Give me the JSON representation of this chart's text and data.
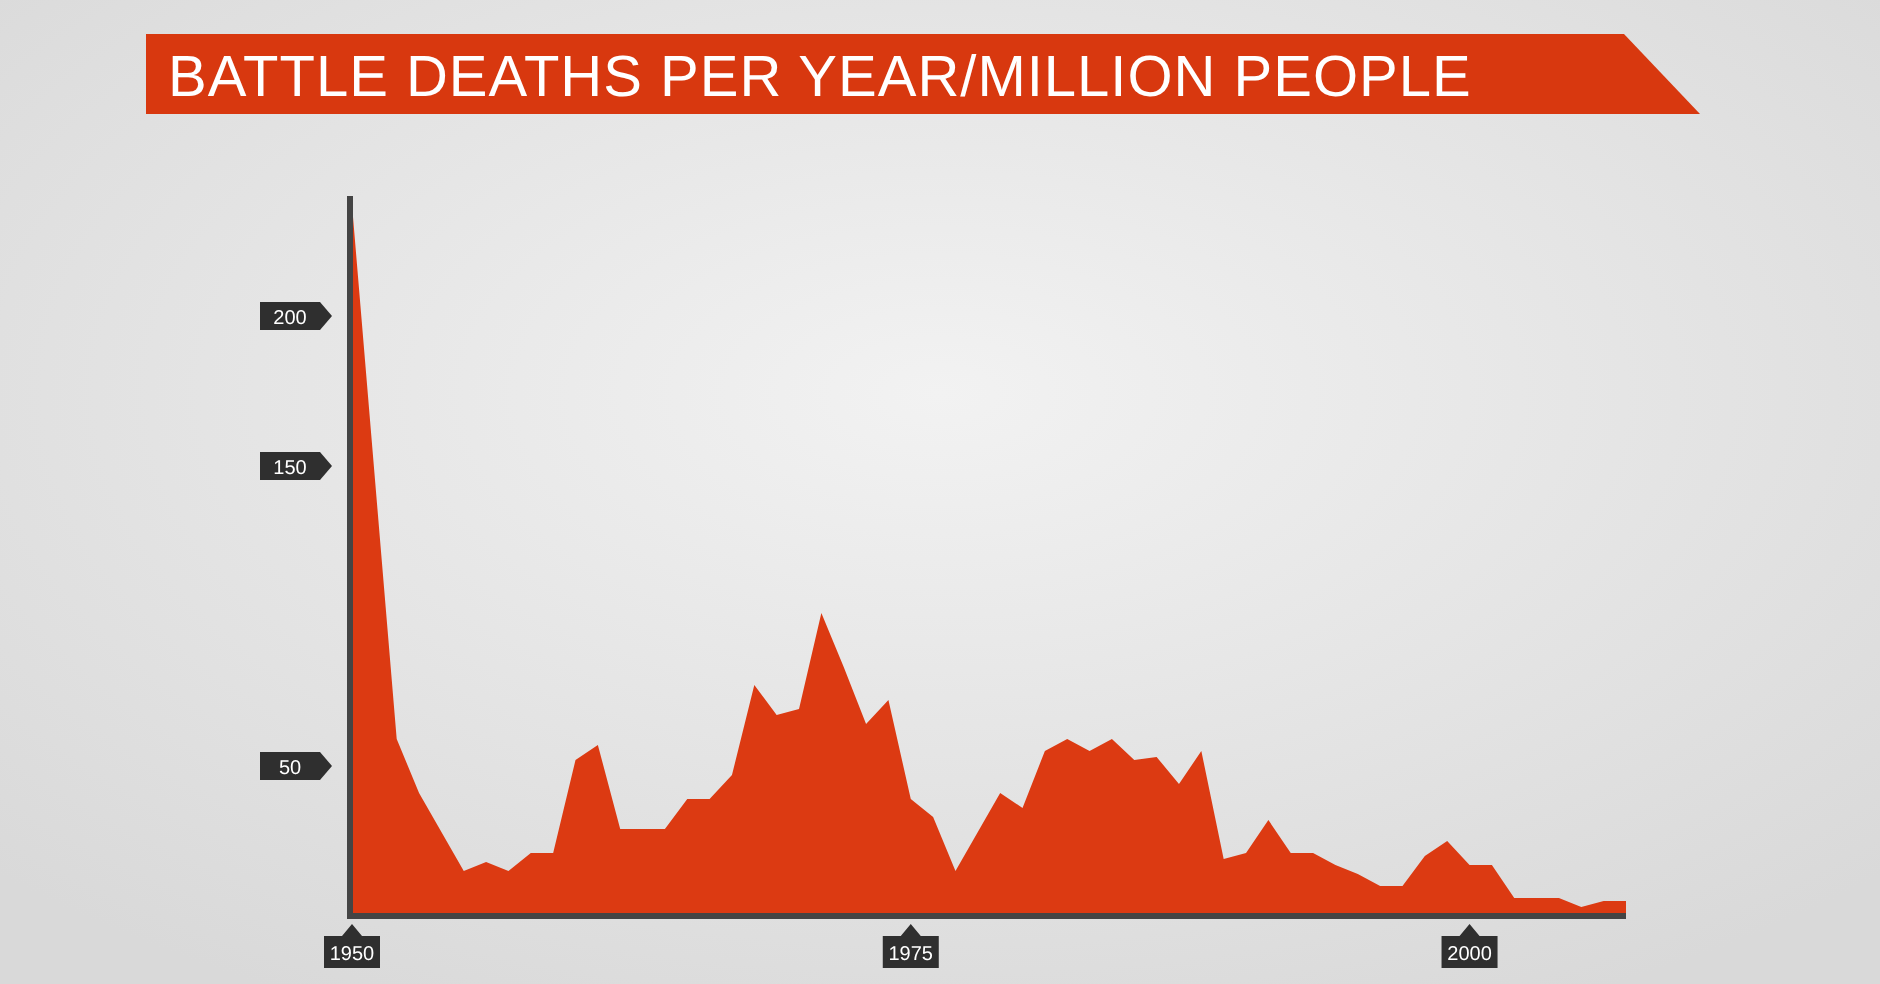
{
  "chart_data": {
    "type": "area",
    "title": "BATTLE DEATHS PER YEAR/MILLION PEOPLE",
    "x": [
      1950,
      1952,
      1953,
      1955,
      1956,
      1957,
      1958,
      1959,
      1960,
      1961,
      1962,
      1963,
      1964,
      1965,
      1966,
      1967,
      1968,
      1969,
      1970,
      1971,
      1972,
      1973,
      1974,
      1975,
      1976,
      1977,
      1978,
      1979,
      1980,
      1981,
      1982,
      1983,
      1984,
      1985,
      1986,
      1987,
      1988,
      1989,
      1990,
      1991,
      1992,
      1993,
      1994,
      1995,
      1996,
      1997,
      1998,
      1999,
      2000,
      2001,
      2002,
      2003,
      2004,
      2005,
      2006,
      2007
    ],
    "values": [
      237,
      59,
      41,
      15,
      18,
      15,
      21,
      21,
      52,
      57,
      29,
      29,
      29,
      39,
      39,
      47,
      77,
      67,
      69,
      101,
      83,
      64,
      72,
      39,
      33,
      15,
      28,
      41,
      36,
      55,
      59,
      55,
      59,
      52,
      53,
      44,
      55,
      19,
      21,
      32,
      21,
      21,
      17,
      14,
      10,
      10,
      20,
      25,
      17,
      17,
      6,
      6,
      6,
      3,
      5,
      5
    ],
    "color": "#dc3a12",
    "xlim": [
      1950,
      2007
    ],
    "ylim": [
      0,
      240
    ],
    "xticks": [
      1950,
      1975,
      2000
    ],
    "yticks": [
      50,
      150,
      200
    ]
  }
}
